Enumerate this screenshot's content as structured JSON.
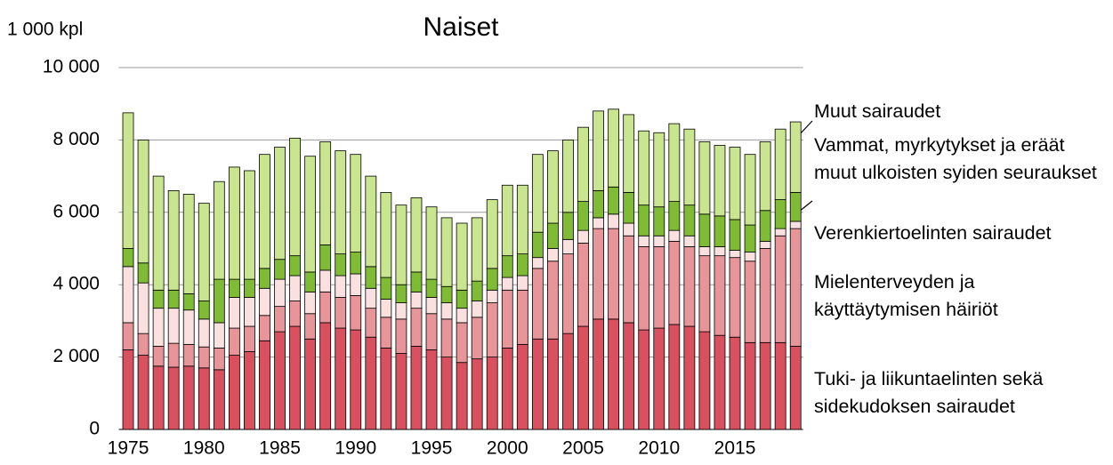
{
  "chart_data": {
    "type": "stacked_bar",
    "title": "Naiset",
    "y_label": "1 000 kpl",
    "categories": [
      1975,
      null,
      null,
      null,
      null,
      1980,
      null,
      null,
      null,
      null,
      1985,
      null,
      null,
      null,
      null,
      1990,
      null,
      null,
      null,
      null,
      1995,
      null,
      null,
      null,
      null,
      2000,
      null,
      null,
      null,
      null,
      2005,
      null,
      null,
      null,
      null,
      2010,
      null,
      null,
      null,
      null,
      2015,
      null,
      null,
      null,
      null
    ],
    "ylim": [
      0,
      10000
    ],
    "yticks": [
      0,
      {
        "value": 2000,
        "label": "2 000"
      },
      {
        "value": 4000,
        "label": "4 000"
      },
      {
        "value": 6000,
        "label": "6 000"
      },
      {
        "value": 8000,
        "label": "8 000"
      },
      {
        "value": 10000,
        "label": "10 000"
      }
    ],
    "grid": true,
    "series": [
      {
        "name": "Tuki- ja liikuntaelinten sekä sidekudoksen sairaudet",
        "color": "#d9505e",
        "values": [
          2200,
          2050,
          1750,
          1720,
          1750,
          1700,
          1650,
          2050,
          2150,
          2450,
          2700,
          2850,
          2500,
          2950,
          2800,
          2750,
          2550,
          2250,
          2100,
          2300,
          2200,
          2000,
          1850,
          1950,
          2000,
          2250,
          2350,
          2500,
          2500,
          2650,
          2850,
          3050,
          3050,
          2950,
          2750,
          2800,
          2900,
          2850,
          2700,
          2600,
          2550,
          2400,
          2400,
          2400,
          2300
        ]
      },
      {
        "name": "Mielenterveyden ja käyttäytymisen häiriöt",
        "color": "#e8959a",
        "values": [
          750,
          600,
          550,
          660,
          600,
          580,
          600,
          750,
          700,
          700,
          700,
          700,
          700,
          850,
          850,
          950,
          800,
          850,
          950,
          1050,
          1000,
          1050,
          1100,
          1150,
          1500,
          1600,
          1500,
          1950,
          2150,
          2200,
          2300,
          2500,
          2500,
          2400,
          2300,
          2250,
          2300,
          2200,
          2100,
          2200,
          2200,
          2250,
          2600,
          2950,
          3250
        ]
      },
      {
        "name": "Verenkiertoelinten sairaudet",
        "color": "#fbe0e0",
        "values": [
          1550,
          1400,
          1050,
          970,
          950,
          770,
          700,
          850,
          800,
          750,
          750,
          700,
          600,
          600,
          600,
          600,
          550,
          500,
          450,
          450,
          450,
          450,
          400,
          450,
          350,
          350,
          400,
          300,
          350,
          400,
          350,
          300,
          400,
          350,
          300,
          300,
          300,
          300,
          250,
          250,
          200,
          250,
          200,
          200,
          200
        ]
      },
      {
        "name": "Vammat, myrkytykset ja eräät muut ulkoisten syiden seuraukset",
        "color": "#7fbb35",
        "values": [
          500,
          550,
          500,
          500,
          450,
          500,
          1200,
          500,
          500,
          550,
          550,
          550,
          550,
          700,
          600,
          600,
          600,
          600,
          500,
          550,
          500,
          450,
          500,
          550,
          600,
          600,
          600,
          700,
          700,
          750,
          800,
          750,
          750,
          850,
          850,
          800,
          800,
          850,
          900,
          850,
          850,
          750,
          850,
          800,
          800
        ]
      },
      {
        "name": "Muut sairaudet",
        "color": "#c9e58f",
        "values": [
          3750,
          3400,
          3150,
          2750,
          2750,
          2700,
          2700,
          3100,
          3000,
          3150,
          3100,
          3250,
          3200,
          2850,
          2850,
          2700,
          2500,
          2350,
          2200,
          2050,
          2000,
          1900,
          1850,
          1750,
          1900,
          1950,
          1900,
          2150,
          2000,
          2000,
          2050,
          2200,
          2150,
          2150,
          2050,
          2050,
          2150,
          2100,
          2000,
          1950,
          2000,
          1950,
          1900,
          1950,
          1950
        ]
      }
    ]
  }
}
